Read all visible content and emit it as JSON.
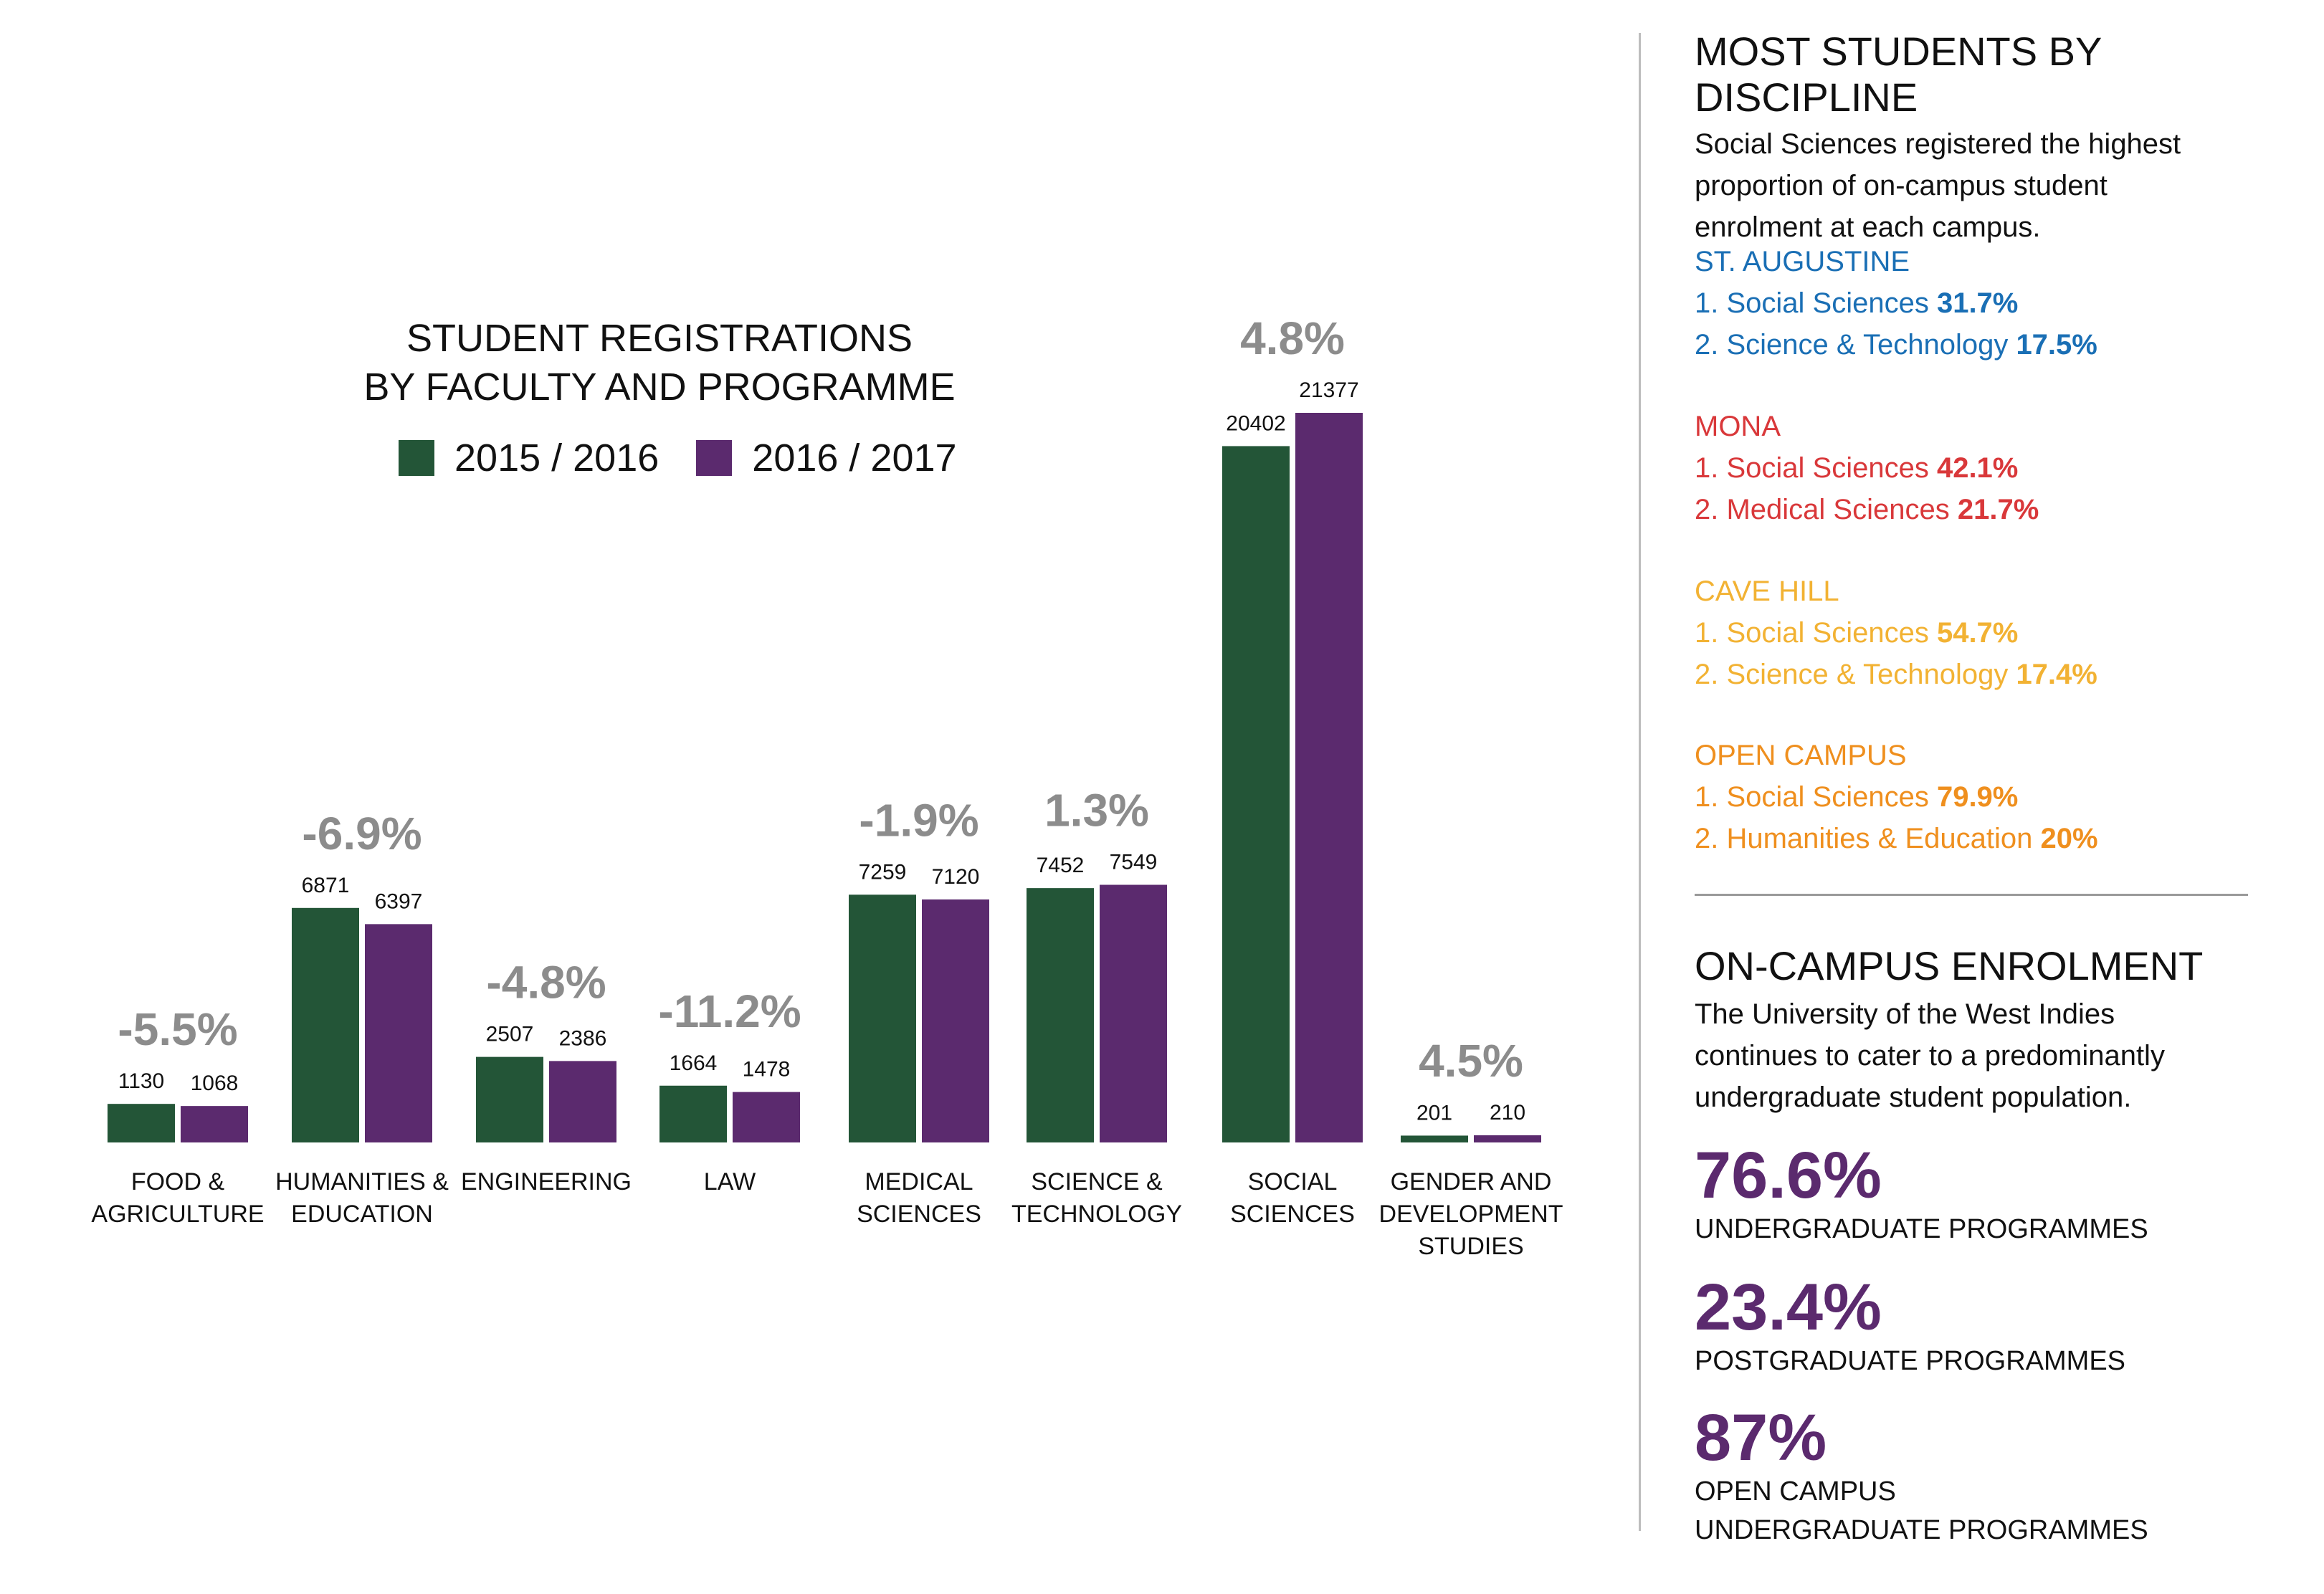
{
  "chart_data": {
    "type": "bar",
    "title": [
      "STUDENT REGISTRATIONS",
      "BY FACULTY AND PROGRAMME"
    ],
    "categories": [
      [
        "FOOD &",
        "AGRICULTURE"
      ],
      [
        "HUMANITIES &",
        "EDUCATION"
      ],
      [
        "ENGINEERING"
      ],
      [
        "LAW"
      ],
      [
        "MEDICAL",
        "SCIENCES"
      ],
      [
        "SCIENCE &",
        "TECHNOLOGY"
      ],
      [
        "SOCIAL",
        "SCIENCES"
      ],
      [
        "GENDER AND",
        "DEVELOPMENT",
        "STUDIES"
      ]
    ],
    "series": [
      {
        "name": "2015 / 2016",
        "color": "#235537",
        "values": [
          1130,
          6871,
          2507,
          1664,
          7259,
          7452,
          20402,
          201
        ]
      },
      {
        "name": "2016 / 2017",
        "color": "#5b2a6e",
        "values": [
          1068,
          6397,
          2386,
          1478,
          7120,
          7549,
          21377,
          210
        ]
      }
    ],
    "changes": [
      "-5.5%",
      "-6.9%",
      "-4.8%",
      "-11.2%",
      "-1.9%",
      "1.3%",
      "4.8%",
      "4.5%"
    ],
    "change_color": "#8c8c8c",
    "ylim": [
      0,
      21377
    ]
  },
  "sidebar": {
    "discipline": {
      "heading": "MOST STUDENTS BY DISCIPLINE",
      "intro": [
        "Social Sciences registered the highest",
        "proportion of on-campus student",
        "enrolment at each campus."
      ],
      "campuses": [
        {
          "name": "ST. AUGUSTINE",
          "color": "#1a6fb5",
          "items": [
            {
              "label": "1. Social Sciences ",
              "pct": "31.7%"
            },
            {
              "label": "2. Science & Technology ",
              "pct": "17.5%"
            }
          ]
        },
        {
          "name": "MONA",
          "color": "#d9383a",
          "items": [
            {
              "label": "1. Social Sciences ",
              "pct": "42.1%"
            },
            {
              "label": "2. Medical Sciences ",
              "pct": "21.7%"
            }
          ]
        },
        {
          "name": "CAVE HILL",
          "color": "#f2b233",
          "items": [
            {
              "label": "1. Social Sciences ",
              "pct": "54.7%"
            },
            {
              "label": "2. Science & Technology ",
              "pct": "17.4%"
            }
          ]
        },
        {
          "name": "OPEN CAMPUS",
          "color": "#ef8f1e",
          "items": [
            {
              "label": "1. Social Sciences ",
              "pct": "79.9%"
            },
            {
              "label": "2. Humanities & Education ",
              "pct": "20%"
            }
          ]
        }
      ]
    },
    "enrolment": {
      "heading": "ON-CAMPUS ENROLMENT",
      "intro": [
        "The University of the West Indies",
        "continues to cater to a predominantly",
        "undergraduate student population."
      ],
      "stats": [
        {
          "value": "76.6%",
          "caption": [
            "UNDERGRADUATE PROGRAMMES"
          ]
        },
        {
          "value": "23.4%",
          "caption": [
            "POSTGRADUATE PROGRAMMES"
          ]
        },
        {
          "value": "87%",
          "caption": [
            "OPEN CAMPUS",
            "UNDERGRADUATE PROGRAMMES"
          ]
        }
      ]
    }
  }
}
